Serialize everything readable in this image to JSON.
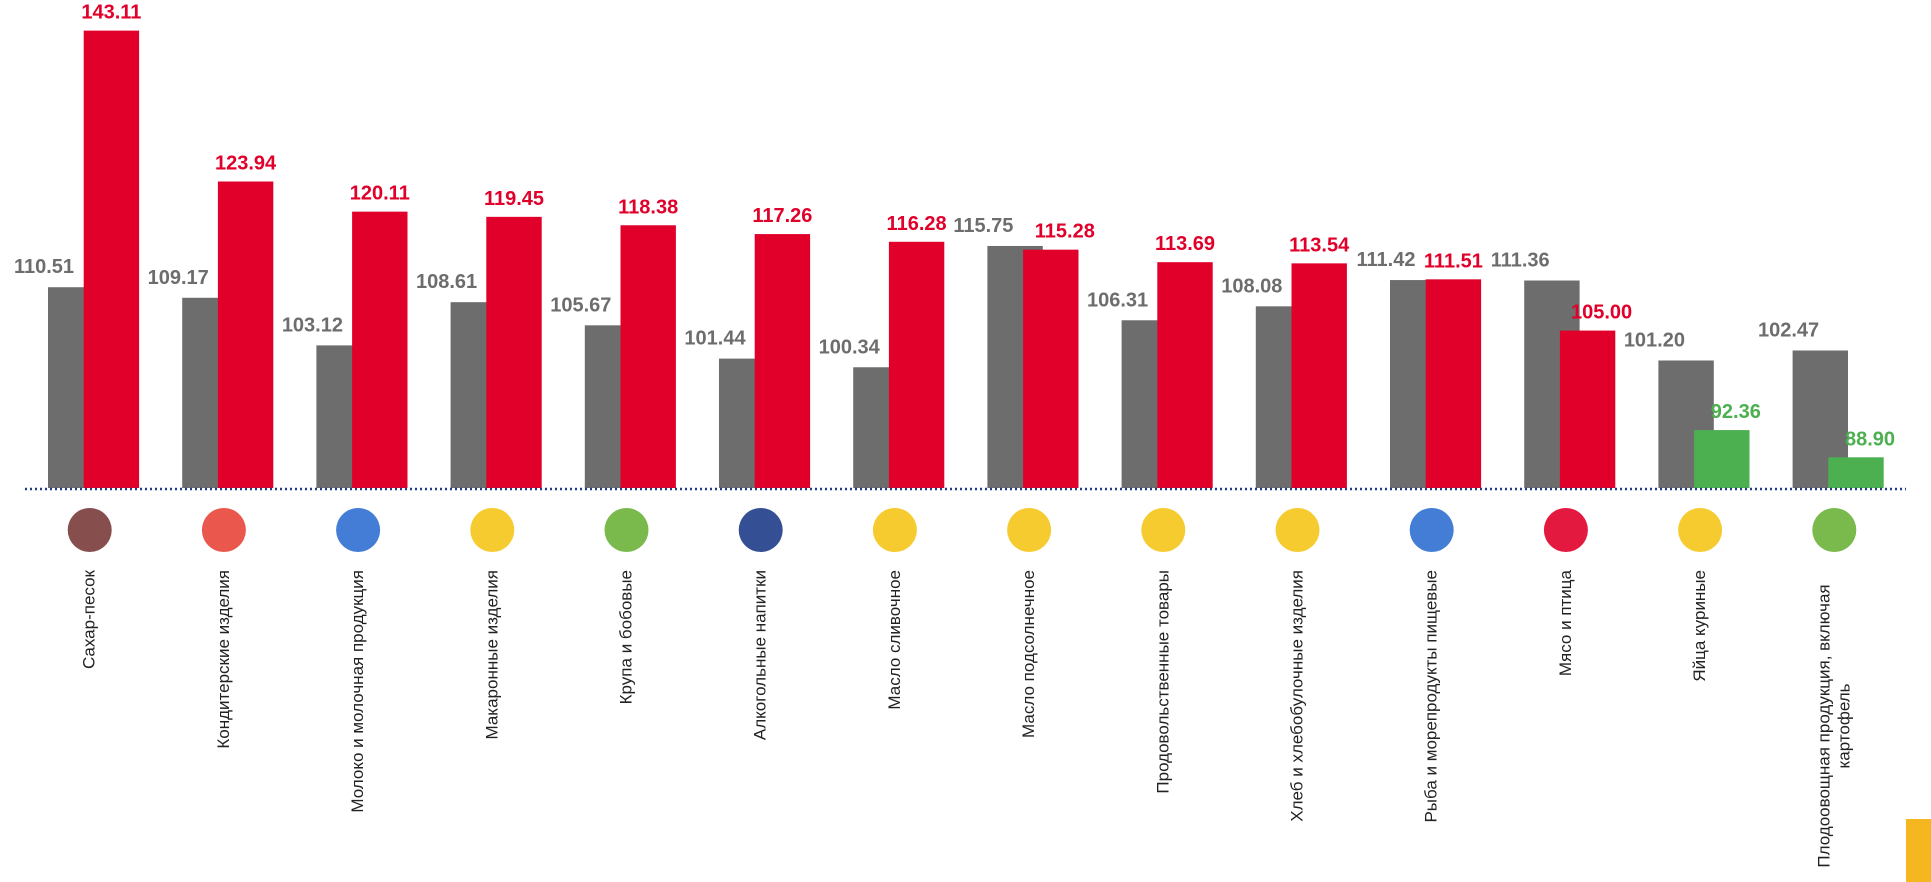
{
  "chart_data": {
    "type": "bar",
    "categories": [
      "Сахар-песок",
      "Кондитерские изделия",
      "Молоко и молочная продукция",
      "Макаронные изделия",
      "Крупа и бобовые",
      "Алкогольные напитки",
      "Масло сливочное",
      "Масло подсолнечное",
      "Продовольственные товары",
      "Хлеб и хлебобулочные изделия",
      "Рыба и морепродукты пищевые",
      "Мясо и птица",
      "Яйца куриные",
      "Плодоовощная продукция, включая картофель"
    ],
    "series": [
      {
        "color": "#6d6d6d",
        "label_color": "#6d6d6d",
        "values": [
          110.51,
          109.17,
          103.12,
          108.61,
          105.67,
          101.44,
          100.34,
          115.75,
          106.31,
          108.08,
          111.42,
          111.36,
          101.2,
          102.47
        ],
        "value_labels": [
          "110.51",
          "109.17",
          "103.12",
          "108.61",
          "105.67",
          "101.44",
          "100.34",
          "115.75",
          "106.31",
          "108.08",
          "111.42",
          "111.36",
          "101.20",
          "102.47"
        ]
      },
      {
        "colors": [
          "#e0002a",
          "#e0002a",
          "#e0002a",
          "#e0002a",
          "#e0002a",
          "#e0002a",
          "#e0002a",
          "#e0002a",
          "#e0002a",
          "#e0002a",
          "#e0002a",
          "#e0002a",
          "#4caf50",
          "#4caf50"
        ],
        "values": [
          143.11,
          123.94,
          120.11,
          119.45,
          118.38,
          117.26,
          116.28,
          115.28,
          113.69,
          113.54,
          111.51,
          105.0,
          92.36,
          88.9
        ],
        "value_labels": [
          "143.11",
          "123.94",
          "120.11",
          "119.45",
          "118.38",
          "117.26",
          "116.28",
          "115.28",
          "113.69",
          "113.54",
          "111.51",
          "105.00",
          "92.36",
          "88.90"
        ]
      }
    ],
    "ylim": [
      85,
      147
    ],
    "grid": false
  }
}
